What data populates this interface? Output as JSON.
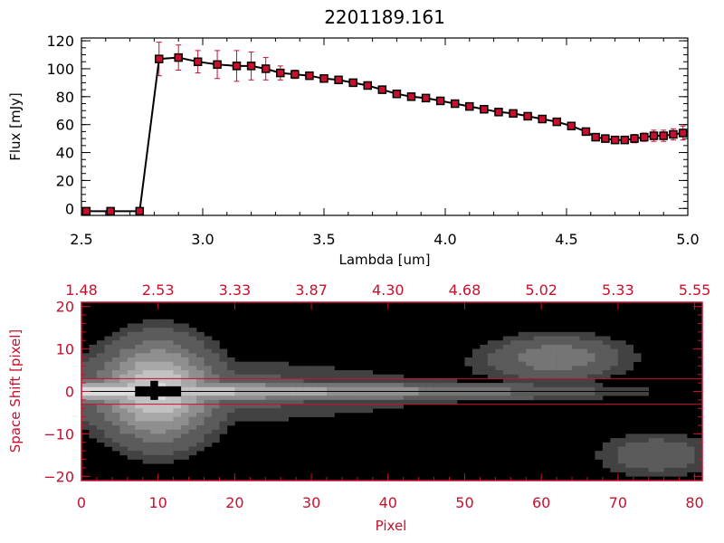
{
  "colors": {
    "line": "#000000",
    "marker_fill": "#c8102e",
    "error_bar": "#c8102e",
    "axis_red": "#c8102e",
    "image_bg": "#000000"
  },
  "chart_data": [
    {
      "type": "line",
      "title": "2201189.161",
      "xlabel": "Lambda [um]",
      "ylabel": "Flux [mJy]",
      "xlim": [
        2.5,
        5.0
      ],
      "ylim": [
        -5,
        122
      ],
      "x_ticks": [
        2.5,
        3.0,
        3.5,
        4.0,
        4.5,
        5.0
      ],
      "x_tick_labels": [
        "2.5",
        "3.0",
        "3.5",
        "4.0",
        "4.5",
        "5.0"
      ],
      "y_ticks": [
        0,
        20,
        40,
        60,
        80,
        100,
        120
      ],
      "y_tick_labels": [
        "0",
        "20",
        "40",
        "60",
        "80",
        "100",
        "120"
      ],
      "series": [
        {
          "markers": "square",
          "x": [
            2.52,
            2.62,
            2.74,
            2.82,
            2.9,
            2.98,
            3.06,
            3.14,
            3.2,
            3.26,
            3.32,
            3.38,
            3.44,
            3.5,
            3.56,
            3.62,
            3.68,
            3.74,
            3.8,
            3.86,
            3.92,
            3.98,
            4.04,
            4.1,
            4.16,
            4.22,
            4.28,
            4.34,
            4.4,
            4.46,
            4.52,
            4.58,
            4.62,
            4.66,
            4.7,
            4.74,
            4.78,
            4.82,
            4.86,
            4.9,
            4.94,
            4.98
          ],
          "y": [
            -2,
            -2,
            -2,
            107,
            108,
            105,
            103,
            102,
            102,
            100,
            97,
            96,
            95,
            93,
            92,
            90,
            88,
            85,
            82,
            80,
            79,
            77,
            75,
            73,
            71,
            69,
            68,
            66,
            64,
            62,
            59,
            55,
            51,
            50,
            49,
            49,
            50,
            51,
            52,
            52,
            53,
            54
          ],
          "yerr": [
            0,
            0,
            0,
            12,
            9,
            8,
            10,
            11,
            10,
            8,
            5,
            3,
            2,
            1,
            1,
            1,
            1,
            1,
            1,
            1,
            1,
            1,
            1,
            1,
            1,
            1,
            1,
            1,
            1,
            1,
            1,
            1,
            1,
            2,
            2,
            2,
            3,
            3,
            4,
            4,
            4,
            5
          ]
        }
      ]
    },
    {
      "type": "heatmap",
      "xlabel": "Pixel",
      "ylabel": "Space Shift [pixel]",
      "xlim": [
        0,
        81
      ],
      "ylim": [
        -21,
        21
      ],
      "x_ticks": [
        0,
        10,
        20,
        30,
        40,
        50,
        60,
        70,
        80
      ],
      "x_tick_labels": [
        "0",
        "10",
        "20",
        "30",
        "40",
        "50",
        "60",
        "70",
        "80"
      ],
      "y_ticks": [
        -20,
        -10,
        0,
        10,
        20
      ],
      "y_tick_labels": [
        "−20",
        "−10",
        "0",
        "10",
        "20"
      ],
      "top_axis_ticks": [
        0,
        10,
        20,
        30,
        40,
        50,
        60,
        70,
        80
      ],
      "top_axis_labels": [
        "1.48",
        "2.53",
        "3.33",
        "3.87",
        "4.30",
        "4.68",
        "5.02",
        "5.33",
        "5.55"
      ],
      "aperture_lines_y": [
        3,
        -3
      ],
      "sources": [
        {
          "pixel": 10,
          "shift": 0,
          "peak": 1.0,
          "sigma_pixel": 5,
          "sigma_shift": 9
        },
        {
          "pixel": 62,
          "shift": 8,
          "peak": 0.55,
          "sigma_pixel": 7,
          "sigma_shift": 4
        },
        {
          "pixel": 75,
          "shift": -15,
          "peak": 0.4,
          "sigma_pixel": 6,
          "sigma_shift": 4
        }
      ]
    }
  ]
}
